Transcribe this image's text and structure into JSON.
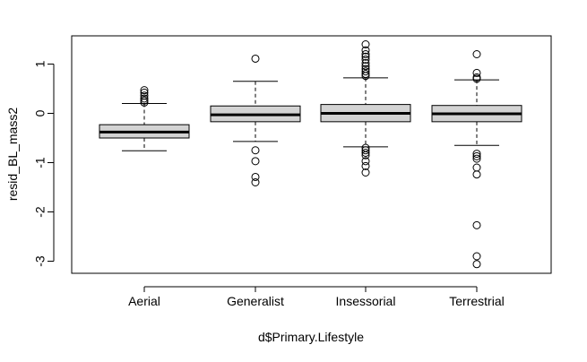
{
  "chart_data": {
    "type": "boxplot",
    "title": "",
    "xlabel": "d$Primary.Lifestyle",
    "ylabel": "resid_BL_mass2",
    "ylim": [
      -3.2,
      1.55
    ],
    "yticks": [
      1,
      0,
      -1,
      -2,
      -3
    ],
    "ytick_labels": [
      "1",
      "0",
      "-1",
      "-2",
      "-3"
    ],
    "grid": false,
    "box_fill": "#d3d3d3",
    "categories": [
      "Aerial",
      "Generalist",
      "Insessorial",
      "Terrestrial"
    ],
    "boxes": [
      {
        "name": "Aerial",
        "whisker_low": -0.76,
        "q1": -0.5,
        "median": -0.38,
        "q3": -0.23,
        "whisker_high": 0.2,
        "outliers": [
          0.47,
          0.42,
          0.36,
          0.3,
          0.26,
          0.22
        ]
      },
      {
        "name": "Generalist",
        "whisker_low": -0.57,
        "q1": -0.17,
        "median": -0.03,
        "q3": 0.15,
        "whisker_high": 0.65,
        "outliers": [
          1.11,
          -0.75,
          -0.97,
          -1.29,
          -1.4
        ]
      },
      {
        "name": "Insessorial",
        "whisker_low": -0.68,
        "q1": -0.17,
        "median": 0.0,
        "q3": 0.18,
        "whisker_high": 0.72,
        "outliers": [
          1.4,
          1.28,
          1.2,
          1.15,
          1.09,
          1.02,
          0.96,
          0.9,
          0.85,
          0.8,
          0.76,
          -0.7,
          -0.75,
          -0.8,
          -0.85,
          -0.97,
          -1.07,
          -1.2
        ]
      },
      {
        "name": "Terrestrial",
        "whisker_low": -0.65,
        "q1": -0.17,
        "median": -0.01,
        "q3": 0.16,
        "whisker_high": 0.68,
        "outliers": [
          1.2,
          0.82,
          0.73,
          0.7,
          -0.82,
          -0.87,
          -0.92,
          -1.1,
          -1.24,
          -2.27,
          -2.9,
          -3.06
        ]
      }
    ]
  }
}
